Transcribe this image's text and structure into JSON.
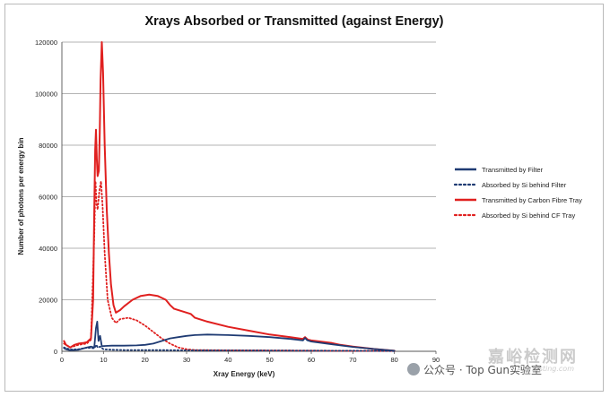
{
  "chart_data": {
    "type": "line",
    "title": "Xrays Absorbed or Transmitted (against Energy)",
    "xlabel": "Xray Energy (keV)",
    "ylabel": "Number of photons per energy bin",
    "xlim": [
      0,
      90
    ],
    "ylim": [
      0,
      120000
    ],
    "xticks": [
      0,
      10,
      20,
      30,
      40,
      50,
      60,
      70,
      80,
      90
    ],
    "yticks": [
      0,
      20000,
      40000,
      60000,
      80000,
      100000,
      120000
    ],
    "grid": "horizontal",
    "legend_position": "right",
    "series": [
      {
        "name": "Transmitted by Filter",
        "color": "#1f3b73",
        "style": "solid",
        "points": [
          [
            0.5,
            1200
          ],
          [
            1,
            800
          ],
          [
            2,
            400
          ],
          [
            4,
            600
          ],
          [
            6,
            1500
          ],
          [
            7,
            1800
          ],
          [
            7.8,
            1500
          ],
          [
            8.2,
            9000
          ],
          [
            8.5,
            11500
          ],
          [
            8.8,
            4000
          ],
          [
            9.2,
            6000
          ],
          [
            9.6,
            2000
          ],
          [
            10.5,
            2100
          ],
          [
            12,
            2200
          ],
          [
            15,
            2200
          ],
          [
            18,
            2300
          ],
          [
            20,
            2500
          ],
          [
            22,
            3000
          ],
          [
            24,
            4000
          ],
          [
            26,
            5000
          ],
          [
            28,
            5500
          ],
          [
            30,
            6000
          ],
          [
            32,
            6300
          ],
          [
            35,
            6500
          ],
          [
            40,
            6300
          ],
          [
            45,
            6000
          ],
          [
            50,
            5500
          ],
          [
            55,
            4800
          ],
          [
            58,
            4200
          ],
          [
            58.5,
            5200
          ],
          [
            59,
            4300
          ],
          [
            60,
            3800
          ],
          [
            65,
            2700
          ],
          [
            70,
            1700
          ],
          [
            75,
            900
          ],
          [
            80,
            200
          ]
        ]
      },
      {
        "name": "Absorbed by Si behind Filter",
        "color": "#1f3b73",
        "style": "dotted",
        "points": [
          [
            0.5,
            1500
          ],
          [
            2,
            700
          ],
          [
            4,
            800
          ],
          [
            6,
            1400
          ],
          [
            7.8,
            1200
          ],
          [
            8.3,
            2500
          ],
          [
            8.6,
            1500
          ],
          [
            9.2,
            1800
          ],
          [
            10,
            800
          ],
          [
            12,
            600
          ],
          [
            15,
            500
          ],
          [
            20,
            500
          ],
          [
            25,
            450
          ],
          [
            30,
            400
          ],
          [
            40,
            350
          ],
          [
            50,
            300
          ],
          [
            60,
            250
          ],
          [
            70,
            200
          ],
          [
            80,
            100
          ]
        ]
      },
      {
        "name": "Transmitted by Carbon Fibre Tray",
        "color": "#e0201f",
        "style": "solid",
        "points": [
          [
            0.5,
            4000
          ],
          [
            1,
            2500
          ],
          [
            2,
            1500
          ],
          [
            3,
            2500
          ],
          [
            4,
            3000
          ],
          [
            5,
            3200
          ],
          [
            6,
            3500
          ],
          [
            7,
            5000
          ],
          [
            7.5,
            20000
          ],
          [
            7.8,
            55000
          ],
          [
            8,
            78000
          ],
          [
            8.2,
            86000
          ],
          [
            8.4,
            75000
          ],
          [
            8.6,
            68000
          ],
          [
            8.9,
            70000
          ],
          [
            9.1,
            85000
          ],
          [
            9.3,
            105000
          ],
          [
            9.6,
            120000
          ],
          [
            9.9,
            108000
          ],
          [
            10.3,
            80000
          ],
          [
            10.8,
            55000
          ],
          [
            11.3,
            38000
          ],
          [
            11.8,
            26000
          ],
          [
            12.4,
            18000
          ],
          [
            13,
            15000
          ],
          [
            14,
            16000
          ],
          [
            15,
            17500
          ],
          [
            17,
            20000
          ],
          [
            19,
            21500
          ],
          [
            21,
            22000
          ],
          [
            23,
            21500
          ],
          [
            25,
            20000
          ],
          [
            26,
            18000
          ],
          [
            27,
            16500
          ],
          [
            29,
            15500
          ],
          [
            31,
            14500
          ],
          [
            32,
            13000
          ],
          [
            35,
            11500
          ],
          [
            40,
            9500
          ],
          [
            45,
            8000
          ],
          [
            50,
            6500
          ],
          [
            55,
            5500
          ],
          [
            58,
            4800
          ],
          [
            58.5,
            5500
          ],
          [
            59.2,
            4500
          ],
          [
            60,
            4200
          ],
          [
            65,
            3200
          ],
          [
            67,
            2500
          ],
          [
            70,
            1800
          ],
          [
            75,
            900
          ],
          [
            80,
            200
          ]
        ]
      },
      {
        "name": "Absorbed by Si behind CF Tray",
        "color": "#e0201f",
        "style": "dotted",
        "points": [
          [
            0.5,
            3000
          ],
          [
            2,
            1500
          ],
          [
            4,
            2500
          ],
          [
            6,
            3000
          ],
          [
            7,
            4500
          ],
          [
            7.8,
            45000
          ],
          [
            8.1,
            66000
          ],
          [
            8.3,
            58000
          ],
          [
            8.6,
            55000
          ],
          [
            9,
            62000
          ],
          [
            9.4,
            66000
          ],
          [
            9.8,
            56000
          ],
          [
            10.3,
            38000
          ],
          [
            11,
            20000
          ],
          [
            12,
            13000
          ],
          [
            13,
            11000
          ],
          [
            14,
            12500
          ],
          [
            16,
            13000
          ],
          [
            18,
            12000
          ],
          [
            20,
            10000
          ],
          [
            22,
            7500
          ],
          [
            24,
            5000
          ],
          [
            26,
            3000
          ],
          [
            28,
            1500
          ],
          [
            30,
            800
          ],
          [
            32,
            500
          ],
          [
            40,
            400
          ],
          [
            50,
            300
          ],
          [
            60,
            250
          ],
          [
            70,
            150
          ],
          [
            80,
            100
          ]
        ]
      }
    ]
  },
  "watermarks": {
    "site_cn": "嘉峪检测网",
    "site_en": "AnyTesting.com",
    "wechat": "公众号 · Top Gun实验室"
  }
}
